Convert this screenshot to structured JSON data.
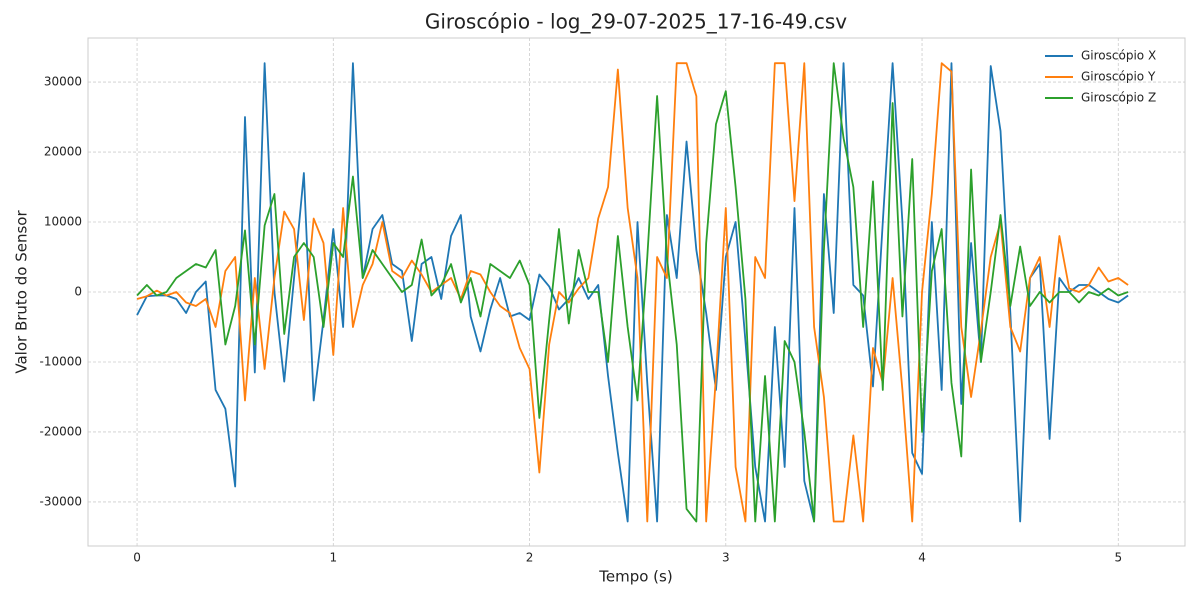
{
  "chart_data": {
    "type": "line",
    "title": "Giroscópio - log_29-07-2025_17-16-49.csv",
    "x_label": "Tempo (s)",
    "y_label": "Valor Bruto do Sensor",
    "x": [
      0,
      0.05,
      0.1,
      0.15,
      0.2,
      0.25,
      0.3,
      0.35,
      0.4,
      0.45,
      0.5,
      0.55,
      0.6,
      0.65,
      0.7,
      0.75,
      0.8,
      0.85,
      0.9,
      0.95,
      1,
      1.05,
      1.1,
      1.15,
      1.2,
      1.25,
      1.3,
      1.35,
      1.4,
      1.45,
      1.5,
      1.55,
      1.6,
      1.65,
      1.7,
      1.75,
      1.8,
      1.85,
      1.9,
      1.95,
      2,
      2.05,
      2.1,
      2.15,
      2.2,
      2.25,
      2.3,
      2.35,
      2.4,
      2.45,
      2.5,
      2.55,
      2.6,
      2.65,
      2.7,
      2.75,
      2.8,
      2.85,
      2.9,
      2.95,
      3,
      3.05,
      3.1,
      3.15,
      3.2,
      3.25,
      3.3,
      3.35,
      3.4,
      3.45,
      3.5,
      3.55,
      3.6,
      3.65,
      3.7,
      3.75,
      3.8,
      3.85,
      3.9,
      3.95,
      4,
      4.05,
      4.1,
      4.15,
      4.2,
      4.25,
      4.3,
      4.35,
      4.4,
      4.45,
      4.5,
      4.55,
      4.6,
      4.65,
      4.7,
      4.75,
      4.8,
      4.85,
      4.9,
      4.95,
      5,
      5.05
    ],
    "series": [
      {
        "name": "Giroscópio X",
        "color": "#1f77b4",
        "values": [
          -3300,
          -600,
          -500,
          -500,
          -1000,
          -3000,
          0,
          1500,
          -14000,
          -16700,
          -27800,
          25000,
          -11500,
          32700,
          0,
          -12800,
          2000,
          17000,
          -15500,
          -4000,
          9000,
          -5000,
          32700,
          2000,
          9000,
          11000,
          4000,
          3000,
          -7000,
          4000,
          5000,
          -1000,
          8000,
          11000,
          -3500,
          -8500,
          -2500,
          2000,
          -3500,
          -3000,
          -4000,
          2500,
          800,
          -2500,
          -1000,
          2000,
          -1000,
          1000,
          -12000,
          -23000,
          -32800,
          10000,
          -13000,
          -32800,
          11000,
          2000,
          21500,
          6000,
          -3000,
          -14000,
          5000,
          10000,
          -7000,
          -25000,
          -32800,
          -5000,
          -25000,
          12000,
          -27000,
          -32800,
          14000,
          -3000,
          32700,
          1000,
          -500,
          -13500,
          10000,
          32700,
          10000,
          -23000,
          -26000,
          10000,
          -14000,
          32700,
          -16000,
          7000,
          -10000,
          32300,
          23000,
          -3000,
          -32800,
          2000,
          4000,
          -21000,
          2000,
          0,
          1000,
          1000,
          0,
          -1000,
          -1500,
          -500
        ]
      },
      {
        "name": "Giroscópio Y",
        "color": "#ff7f0e",
        "values": [
          -1000,
          -600,
          200,
          -500,
          0,
          -1500,
          -2000,
          -1000,
          -5000,
          3000,
          5000,
          -15500,
          2000,
          -11000,
          2000,
          11500,
          9000,
          -4000,
          10500,
          7000,
          -9000,
          12000,
          -5000,
          1000,
          4000,
          10000,
          3000,
          2000,
          4500,
          2500,
          0,
          1000,
          2000,
          -1000,
          3000,
          2500,
          0,
          -2000,
          -3000,
          -8000,
          -11000,
          -25800,
          -7500,
          0,
          -1500,
          500,
          2000,
          10500,
          15000,
          31800,
          12000,
          2000,
          -32800,
          5000,
          2000,
          32700,
          32700,
          28000,
          -32800,
          -12000,
          12000,
          -25000,
          -32800,
          5000,
          2000,
          32700,
          32700,
          13000,
          32700,
          -5000,
          -15000,
          -32800,
          -32800,
          -20500,
          -32800,
          -8000,
          -13000,
          2000,
          -14000,
          -32800,
          0,
          14000,
          32700,
          31500,
          -5000,
          -15000,
          -5500,
          5000,
          10000,
          -5000,
          -8500,
          2000,
          5000,
          -5000,
          8000,
          500,
          0,
          1000,
          3500,
          1500,
          2000,
          1000
        ]
      },
      {
        "name": "Giroscópio Z",
        "color": "#2ca02c",
        "values": [
          -500,
          1000,
          -500,
          0,
          2000,
          3000,
          4000,
          3500,
          6000,
          -7500,
          -2000,
          8800,
          -7500,
          9500,
          14000,
          -6000,
          5000,
          7000,
          5000,
          -5000,
          7000,
          5000,
          16500,
          2000,
          6000,
          4000,
          2000,
          0,
          1000,
          7500,
          -500,
          1000,
          4000,
          -1500,
          2000,
          -3500,
          4000,
          3000,
          2000,
          4500,
          1000,
          -18000,
          -4000,
          9000,
          -4500,
          6000,
          0,
          0,
          -10000,
          8000,
          -5000,
          -15500,
          5000,
          28000,
          5000,
          -7500,
          -31000,
          -32800,
          7000,
          24000,
          28700,
          15000,
          -1000,
          -32800,
          -12000,
          -32800,
          -7000,
          -10000,
          -20000,
          -32800,
          6000,
          32700,
          22000,
          15000,
          -5000,
          15800,
          -14000,
          27000,
          -3500,
          19000,
          -20000,
          3000,
          9000,
          -13000,
          -23500,
          17500,
          -10000,
          0,
          11000,
          -2000,
          6500,
          -2000,
          0,
          -1500,
          0,
          0,
          -1500,
          0,
          -500,
          500,
          -500,
          0
        ]
      }
    ],
    "xlim": [
      -0.25,
      5.34
    ],
    "ylim": [
      -36300,
      36300
    ],
    "xticks": [
      0,
      1,
      2,
      3,
      4,
      5
    ],
    "yticks": [
      -30000,
      -20000,
      -10000,
      0,
      10000,
      20000,
      30000
    ],
    "grid": true,
    "legend": "upper right"
  }
}
